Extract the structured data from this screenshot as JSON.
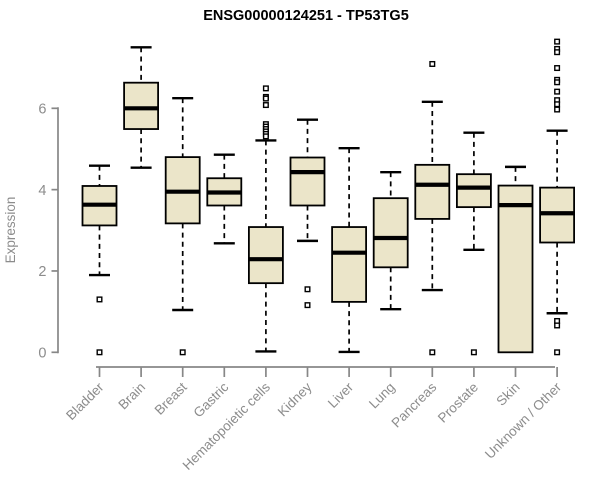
{
  "chart_data": {
    "type": "boxplot",
    "title": "ENSG00000124251 - TP53TG5",
    "ylabel": "Expression",
    "xlabel": "",
    "yticks": [
      0,
      2,
      4,
      6
    ],
    "ylim": [
      0,
      7.8
    ],
    "grid": false,
    "legend": "none",
    "categories": [
      "Bladder",
      "Brain",
      "Breast",
      "Gastric",
      "Hematopoietic cells",
      "Kidney",
      "Liver",
      "Lung",
      "Pancreas",
      "Prostate",
      "Skin",
      "Unknown / Other"
    ],
    "boxes": [
      {
        "category": "Bladder",
        "whisker_low": 1.9,
        "q1": 3.12,
        "median": 3.63,
        "q3": 4.09,
        "whisker_high": 4.59,
        "outliers": [
          1.3,
          0
        ]
      },
      {
        "category": "Brain",
        "whisker_low": 4.54,
        "q1": 5.49,
        "median": 6.0,
        "q3": 6.63,
        "whisker_high": 7.5,
        "outliers": []
      },
      {
        "category": "Breast",
        "whisker_low": 1.04,
        "q1": 3.17,
        "median": 3.95,
        "q3": 4.8,
        "whisker_high": 6.25,
        "outliers": [
          0
        ]
      },
      {
        "category": "Gastric",
        "whisker_low": 2.68,
        "q1": 3.61,
        "median": 3.93,
        "q3": 4.28,
        "whisker_high": 4.86,
        "outliers": []
      },
      {
        "category": "Hematopoietic cells",
        "whisker_low": 0.02,
        "q1": 1.7,
        "median": 2.29,
        "q3": 3.08,
        "whisker_high": 5.21,
        "outliers": [
          6.49,
          6.28,
          6.24,
          6.08,
          5.61,
          5.55,
          5.49,
          5.43,
          5.37,
          5.31
        ]
      },
      {
        "category": "Kidney",
        "whisker_low": 2.74,
        "q1": 3.61,
        "median": 4.43,
        "q3": 4.79,
        "whisker_high": 5.72,
        "outliers": [
          1.55,
          1.16
        ]
      },
      {
        "category": "Liver",
        "whisker_low": 0.01,
        "q1": 1.24,
        "median": 2.45,
        "q3": 3.08,
        "whisker_high": 5.02,
        "outliers": []
      },
      {
        "category": "Lung",
        "whisker_low": 1.06,
        "q1": 2.09,
        "median": 2.81,
        "q3": 3.79,
        "whisker_high": 4.43,
        "outliers": []
      },
      {
        "category": "Pancreas",
        "whisker_low": 1.53,
        "q1": 3.28,
        "median": 4.12,
        "q3": 4.61,
        "whisker_high": 6.16,
        "outliers": [
          7.09,
          0
        ]
      },
      {
        "category": "Prostate",
        "whisker_low": 2.52,
        "q1": 3.57,
        "median": 4.05,
        "q3": 4.38,
        "whisker_high": 5.4,
        "outliers": [
          0
        ]
      },
      {
        "category": "Skin",
        "whisker_low": 0.0,
        "q1": 0.0,
        "median": 3.62,
        "q3": 4.1,
        "whisker_high": 4.56,
        "outliers": []
      },
      {
        "category": "Unknown / Other",
        "whisker_low": 0.96,
        "q1": 2.7,
        "median": 3.42,
        "q3": 4.05,
        "whisker_high": 5.45,
        "outliers": [
          7.64,
          7.46,
          7.38,
          6.99,
          6.7,
          6.64,
          6.41,
          6.2,
          6.1,
          5.97,
          0.77,
          0.66,
          0
        ]
      }
    ],
    "colors": {
      "box_fill": "#EBE5C9",
      "box_stroke": "#000000",
      "median": "#000000",
      "axis": "#878787",
      "tick_text": "#8C8C8C",
      "title_text": "#000000"
    }
  }
}
